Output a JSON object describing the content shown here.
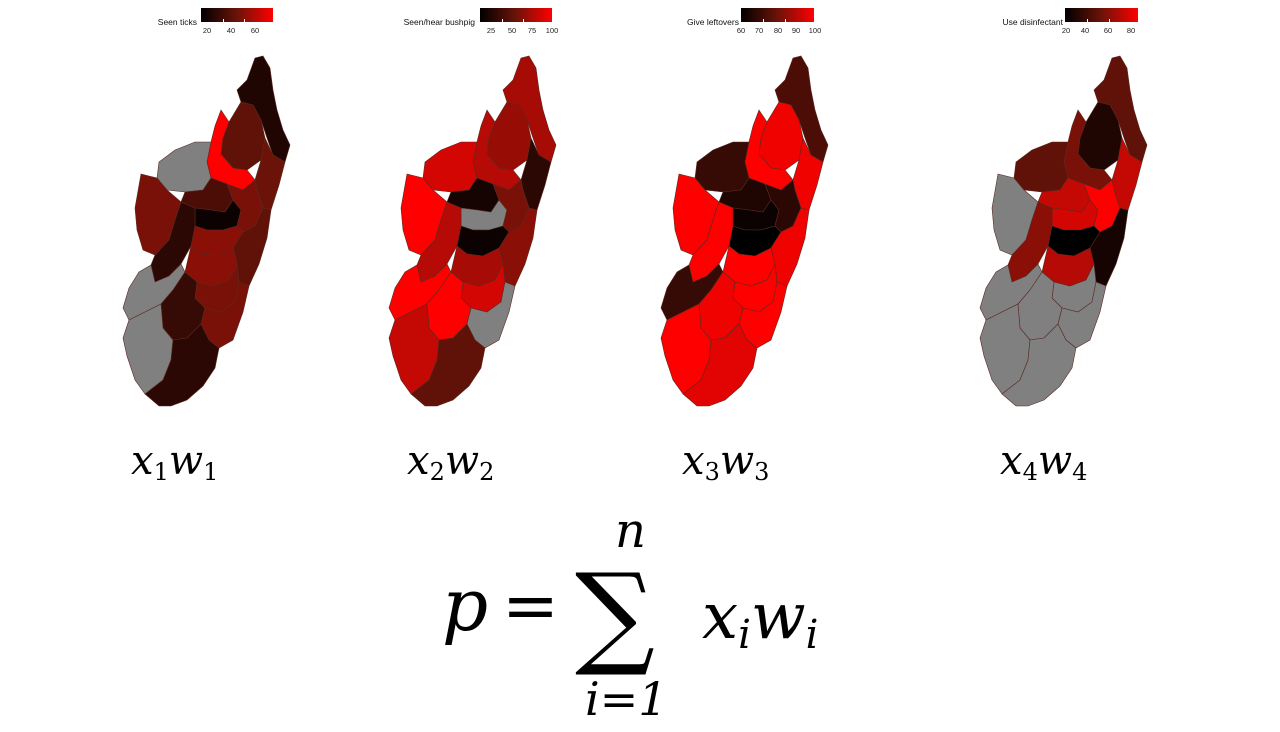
{
  "colors": {
    "no_data": "#808080",
    "scale_low": "#000000",
    "scale_mid": "#6b1309",
    "scale_high": "#ff0000"
  },
  "panels": [
    {
      "legend_title": "Seen ticks",
      "legend_ticks": [
        "20",
        "40",
        "60"
      ],
      "caption_var": "x",
      "caption_weight": "w",
      "caption_index": "1",
      "region_fill_levels": [
        0.15,
        0.45,
        1.0,
        "na",
        0.55,
        0.35,
        0.05,
        0.5,
        0.55,
        0.6,
        0.2,
        0.45,
        0.6,
        "na",
        0.55,
        0.25,
        0.55,
        "na",
        0.2
      ]
    },
    {
      "legend_title": "Seen/hear bushpig",
      "legend_ticks": [
        "25",
        "50",
        "75",
        "100"
      ],
      "caption_var": "x",
      "caption_weight": "w",
      "caption_index": "2",
      "region_fill_levels": [
        0.7,
        0.65,
        0.75,
        0.85,
        1.0,
        0.1,
        "na",
        0.2,
        0.55,
        0.05,
        0.75,
        0.6,
        0.7,
        1.0,
        0.85,
        1.0,
        "na",
        0.8,
        0.45
      ]
    },
    {
      "legend_title": "Give leftovers",
      "legend_ticks": [
        "60",
        "70",
        "80",
        "90",
        "100"
      ],
      "caption_var": "x",
      "caption_weight": "w",
      "caption_index": "3",
      "region_fill_levels": [
        0.35,
        0.95,
        1.0,
        0.25,
        1.0,
        0.15,
        0.05,
        0.95,
        0.2,
        0.0,
        1.0,
        0.95,
        1.0,
        0.25,
        1.0,
        0.95,
        1.0,
        1.0,
        0.9
      ]
    },
    {
      "legend_title": "Use disinfectant",
      "legend_ticks": [
        "20",
        "40",
        "60",
        "80"
      ],
      "caption_var": "x",
      "caption_weight": "w",
      "caption_index": "4",
      "region_fill_levels": [
        0.45,
        0.15,
        0.55,
        0.45,
        "na",
        0.8,
        0.85,
        0.8,
        1.0,
        0.0,
        0.6,
        0.1,
        0.75,
        "na",
        "na",
        "na",
        "na",
        "na",
        "na"
      ]
    }
  ],
  "formula": {
    "lhs": "p",
    "equals": "=",
    "sum_symbol": "∑",
    "upper_limit": "n",
    "lower_limit": "i=1",
    "term_var": "x",
    "term_var_index": "i",
    "term_weight": "w",
    "term_weight_index": "i"
  }
}
